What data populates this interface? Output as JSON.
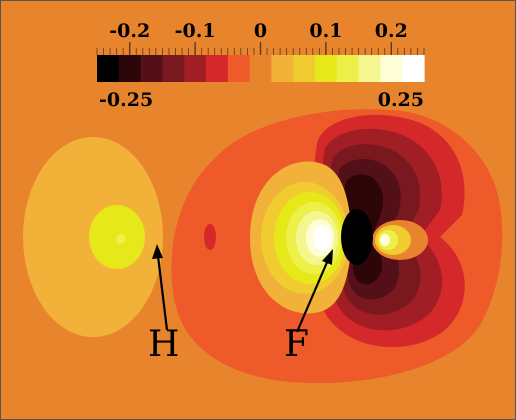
{
  "colorbar": {
    "top_ticks": [
      "-0.2",
      "-0.1",
      "0",
      "0.1",
      "0.2"
    ],
    "min_label": "-0.25",
    "max_label": "0.25",
    "range": [
      -0.25,
      0.25
    ],
    "levels": [
      {
        "color": "#000000"
      },
      {
        "color": "#2c0608"
      },
      {
        "color": "#541018"
      },
      {
        "color": "#7a1820"
      },
      {
        "color": "#a01e24"
      },
      {
        "color": "#d4282a"
      },
      {
        "color": "#ef5a2a"
      },
      {
        "color": "#e8842c"
      },
      {
        "color": "#f2b23a"
      },
      {
        "color": "#f0cc30"
      },
      {
        "color": "#e6e81a"
      },
      {
        "color": "#eef04a"
      },
      {
        "color": "#f6f690"
      },
      {
        "color": "#fdfdd8"
      },
      {
        "color": "#ffffff"
      }
    ]
  },
  "annotations": {
    "h_label": "H",
    "f_label": "F"
  },
  "colors": {
    "background": "#e8842c",
    "plot_border": "#555555"
  }
}
